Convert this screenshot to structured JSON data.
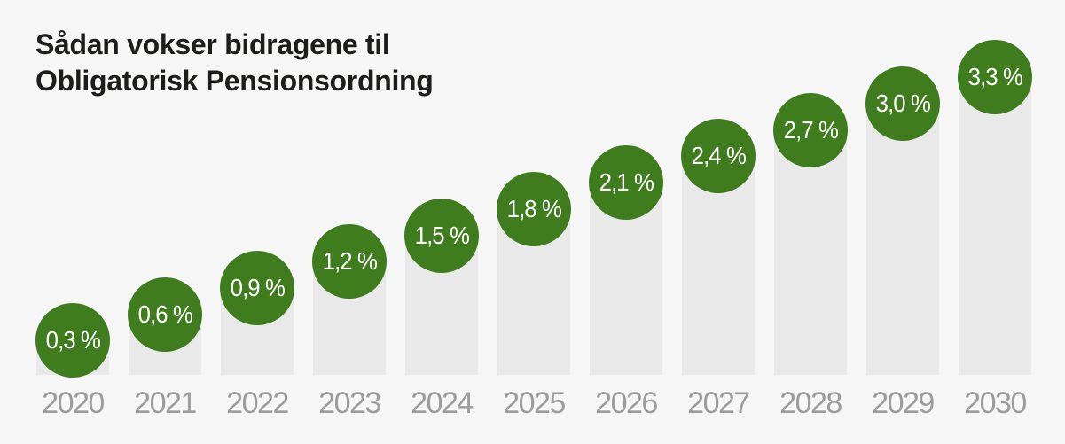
{
  "title": {
    "line1": "Sådan vokser bidragene til",
    "line2": "Obligatorisk Pensionsordning"
  },
  "chart_data": {
    "type": "bar",
    "title": "Sådan vokser bidragene til Obligatorisk Pensionsordning",
    "categories": [
      "2020",
      "2021",
      "2022",
      "2023",
      "2024",
      "2025",
      "2026",
      "2027",
      "2028",
      "2029",
      "2030"
    ],
    "values": [
      0.3,
      0.6,
      0.9,
      1.2,
      1.5,
      1.8,
      2.1,
      2.4,
      2.7,
      3.0,
      3.3
    ],
    "value_labels": [
      "0,3 %",
      "0,6 %",
      "0,9 %",
      "1,2 %",
      "1,5 %",
      "1,8 %",
      "2,1 %",
      "2,4 %",
      "2,7 %",
      "3,0 %",
      "3,3 %"
    ],
    "unit": "%",
    "ylim": [
      0,
      3.5
    ],
    "grid": false,
    "legend": "none",
    "value_label_style": "circle-badge-at-bar-top",
    "colors": {
      "background": "#f6f6f6",
      "bar": "#e9e9e9",
      "bubble": "#3e7c1e",
      "bubble_text": "#ffffff",
      "title_text": "#1d1d1b",
      "axis_label_text": "#9c9c9c"
    }
  }
}
